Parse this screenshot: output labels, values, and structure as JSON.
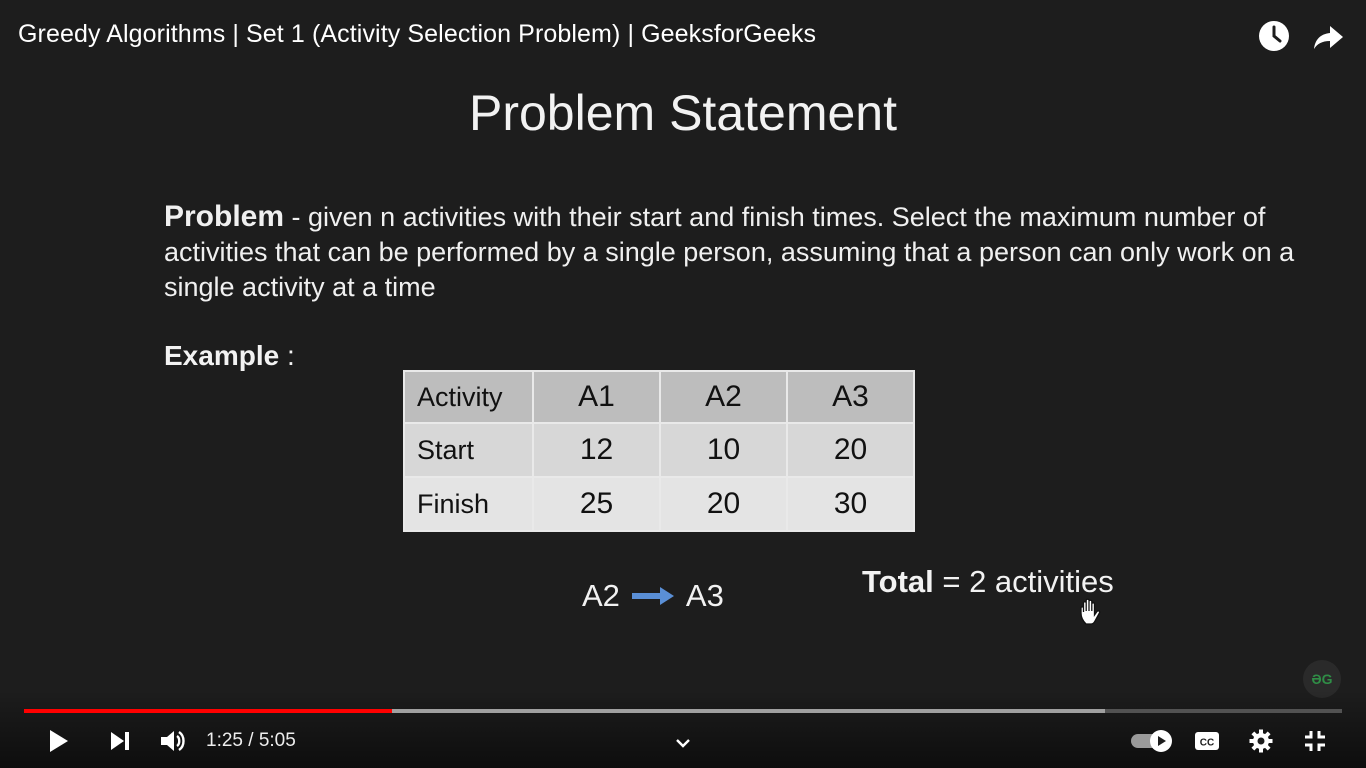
{
  "video": {
    "title": "Greedy Algorithms | Set 1 (Activity Selection Problem) | GeeksforGeeks"
  },
  "top_actions": {
    "watch_later_icon": "clock-icon",
    "share_icon": "share-arrow-icon"
  },
  "slide": {
    "heading": "Problem Statement",
    "problem_label": "Problem",
    "problem_text": " - given n activities with their start and finish times. Select the maximum number of activities that can be performed by a single person, assuming that a person can only work on a single activity at a time",
    "example_label": "Example",
    "example_colon": " :",
    "table": {
      "headers": [
        "Activity",
        "A1",
        "A2",
        "A3"
      ],
      "rows": [
        {
          "label": "Start",
          "values": [
            "12",
            "10",
            "20"
          ]
        },
        {
          "label": "Finish",
          "values": [
            "25",
            "20",
            "30"
          ]
        }
      ]
    },
    "sequence": {
      "from": "A2",
      "to": "A3"
    },
    "total_label": "Total",
    "total_value": " = 2 activities",
    "watermark": "ƏG"
  },
  "controls": {
    "current_time": "1:25",
    "duration": "5:05",
    "time_text": "1:25 / 5:05",
    "progress_fraction": 0.279,
    "buffered_fraction": 0.82,
    "autoplay_on": true,
    "colors": {
      "progress_red": "#ff0000",
      "icon_white": "#ffffff",
      "arrow_blue": "#5a8fd6",
      "gfg_green": "#2f8d46"
    }
  }
}
